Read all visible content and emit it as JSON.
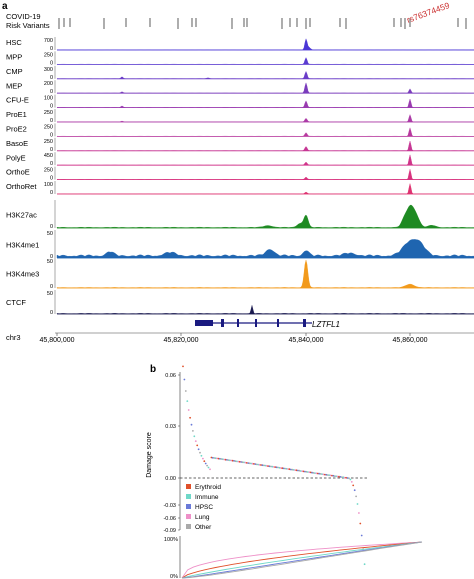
{
  "panel_a": {
    "panel_label": "a",
    "variants_label_line1": "COVID-19",
    "variants_label_line2": "Risk Variants",
    "highlight_variant": "rs76374459",
    "chrom_label": "chr3",
    "gene_label": "LZTFL1",
    "colors": {
      "blood_tracks": "#5533cc",
      "erythroid_tracks": "#cc2277",
      "H3K27ac": "#1e8a22",
      "H3K4me1": "#1f65b0",
      "H3K4me3": "#f29a1c",
      "CTCF": "#1a1a50"
    },
    "tracks": [
      {
        "name": "HSC",
        "ymax": "700",
        "ymin": "0",
        "color": "#4a36d6"
      },
      {
        "name": "MPP",
        "ymax": "250",
        "ymin": "0",
        "color": "#5a3bd0"
      },
      {
        "name": "CMP",
        "ymax": "300",
        "ymin": "0",
        "color": "#6a3cc8"
      },
      {
        "name": "MEP",
        "ymax": "200",
        "ymin": "0",
        "color": "#7a3cbc"
      },
      {
        "name": "CFU-E",
        "ymax": "100",
        "ymin": "0",
        "color": "#9a3bb0"
      },
      {
        "name": "ProE1",
        "ymax": "250",
        "ymin": "0",
        "color": "#ab3aa6"
      },
      {
        "name": "ProE2",
        "ymax": "250",
        "ymin": "0",
        "color": "#b8389e"
      },
      {
        "name": "BasoE",
        "ymax": "250",
        "ymin": "0",
        "color": "#c63694"
      },
      {
        "name": "PolyE",
        "ymax": "450",
        "ymin": "0",
        "color": "#d0348a"
      },
      {
        "name": "OrthoE",
        "ymax": "250",
        "ymin": "0",
        "color": "#d8327e"
      },
      {
        "name": "OrthoRet",
        "ymax": "100",
        "ymin": "0",
        "color": "#de3270"
      }
    ],
    "histone_tracks": [
      {
        "name": "H3K27ac",
        "ymax": "50",
        "ymin": "0"
      },
      {
        "name": "H3K4me1",
        "ymax": "50",
        "ymin": "0"
      },
      {
        "name": "H3K4me3",
        "ymax": "50",
        "ymin": "0"
      },
      {
        "name": "CTCF",
        "ymax": "50",
        "ymin": "0"
      }
    ],
    "x_ticks": [
      "45,800,000",
      "45,820,000",
      "45,840,000",
      "45,860,000"
    ]
  },
  "panel_b": {
    "panel_label": "b",
    "y_label": "Damage score",
    "y_ticks": [
      "0.06",
      "0.03",
      "0.00",
      "-0.03",
      "-0.06",
      "-0.09"
    ],
    "legend": [
      {
        "label": "Erythroid",
        "color": "#e0502a"
      },
      {
        "label": "Immune",
        "color": "#6fd8c8"
      },
      {
        "label": "HPSC",
        "color": "#6a7ad8"
      },
      {
        "label": "Lung",
        "color": "#ee90c8"
      },
      {
        "label": "Other",
        "color": "#aaaaaa"
      }
    ],
    "cdf_ticks": [
      "100%",
      "0%"
    ],
    "cdf_colors": [
      "#ee90c8",
      "#e0502a",
      "#6fd8c8",
      "#6a7ad8",
      "#aaaaaa"
    ]
  }
}
